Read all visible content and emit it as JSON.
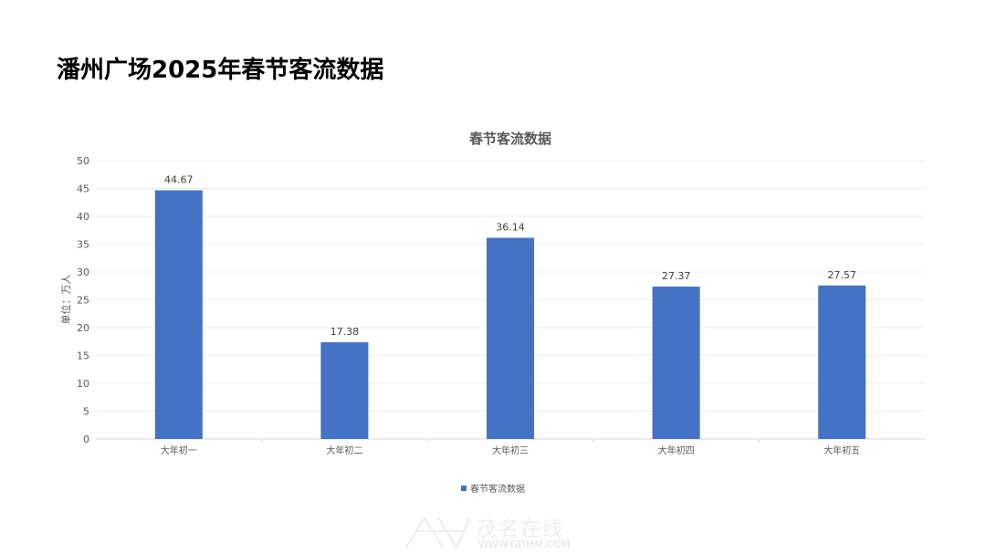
{
  "page": {
    "title": "潘州广场2025年春节客流数据"
  },
  "watermark": {
    "text": "茂名在线",
    "url": "WWW.GDMM.COM"
  },
  "chart_data": {
    "type": "bar",
    "title": "春节客流数据",
    "ylabel": "单位：万人",
    "xlabel": "",
    "categories": [
      "大年初一",
      "大年初二",
      "大年初三",
      "大年初四",
      "大年初五"
    ],
    "series": [
      {
        "name": "春节客流数据",
        "values": [
          44.67,
          17.38,
          36.14,
          27.37,
          27.57
        ],
        "color": "#4472c4"
      }
    ],
    "ylim": [
      0,
      50
    ],
    "yticks": [
      0,
      5,
      10,
      15,
      20,
      25,
      30,
      35,
      40,
      45,
      50
    ],
    "grid": true,
    "legend": "bottom",
    "data_labels": true
  }
}
